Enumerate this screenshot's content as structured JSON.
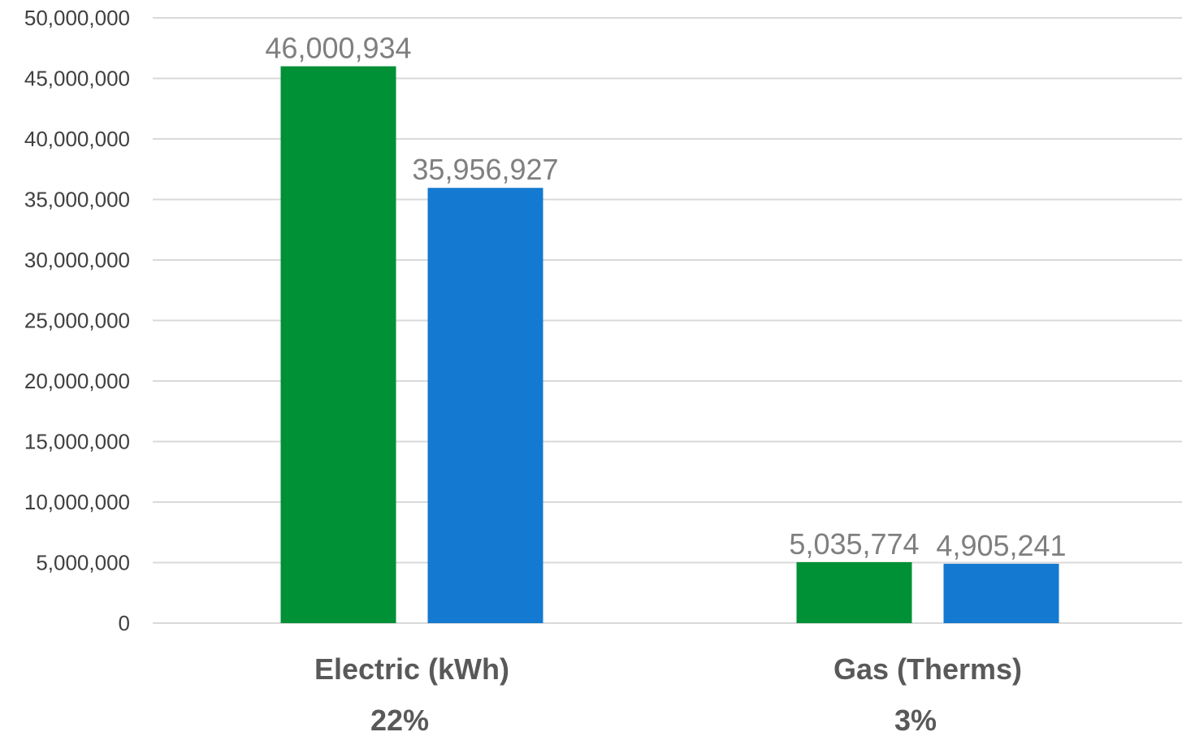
{
  "chart_data": {
    "type": "bar",
    "categories": [
      "Electric (kWh)",
      "Gas (Therms)"
    ],
    "category_sublabels": [
      "22%",
      "3%"
    ],
    "series": [
      {
        "color": "#009035",
        "values": [
          46000934,
          5035774
        ],
        "labels": [
          "46,000,934",
          "5,035,774"
        ]
      },
      {
        "color": "#1479d0",
        "values": [
          35956927,
          4905241
        ],
        "labels": [
          "35,956,927",
          "4,905,241"
        ]
      }
    ],
    "ylim": [
      0,
      50000000
    ],
    "yticks": [
      0,
      5000000,
      10000000,
      15000000,
      20000000,
      25000000,
      30000000,
      35000000,
      40000000,
      45000000,
      50000000
    ],
    "ytick_labels": [
      "0",
      "5,000,000",
      "10,000,000",
      "15,000,000",
      "20,000,000",
      "25,000,000",
      "30,000,000",
      "35,000,000",
      "40,000,000",
      "45,000,000",
      "50,000,000"
    ],
    "grid": true,
    "legend": "none"
  }
}
